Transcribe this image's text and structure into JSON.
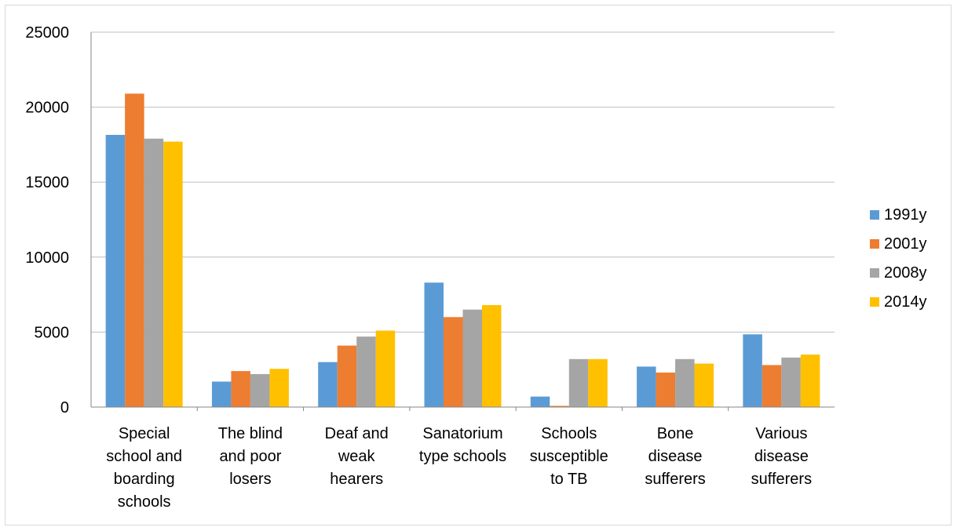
{
  "chart_data": {
    "type": "bar",
    "categories": [
      [
        "Special",
        "school and",
        "boarding",
        "schools"
      ],
      [
        "The blind",
        "and poor",
        "losers"
      ],
      [
        "Deaf and",
        "weak",
        "hearers"
      ],
      [
        "Sanatorium",
        "type schools"
      ],
      [
        "Schools",
        "susceptible",
        "to TB"
      ],
      [
        "Bone",
        "disease",
        "sufferers"
      ],
      [
        "Various",
        "disease",
        "sufferers"
      ]
    ],
    "series": [
      {
        "name": "1991y",
        "color": "#5b9bd5",
        "values": [
          18150,
          1700,
          3000,
          8300,
          700,
          2700,
          4850
        ]
      },
      {
        "name": "2001y",
        "color": "#ed7d31",
        "values": [
          20900,
          2400,
          4100,
          6000,
          80,
          2300,
          2800
        ]
      },
      {
        "name": "2008y",
        "color": "#a5a5a5",
        "values": [
          17900,
          2200,
          4700,
          6500,
          3200,
          3200,
          3300
        ]
      },
      {
        "name": "2014y",
        "color": "#ffc000",
        "values": [
          17700,
          2550,
          5100,
          6800,
          3200,
          2900,
          3500
        ]
      }
    ],
    "yticks": [
      "0",
      "5000",
      "10000",
      "15000",
      "20000",
      "25000"
    ],
    "ylim": [
      0,
      25000
    ],
    "grid": true,
    "legend_position": "right",
    "title": "",
    "xlabel": "",
    "ylabel": ""
  }
}
